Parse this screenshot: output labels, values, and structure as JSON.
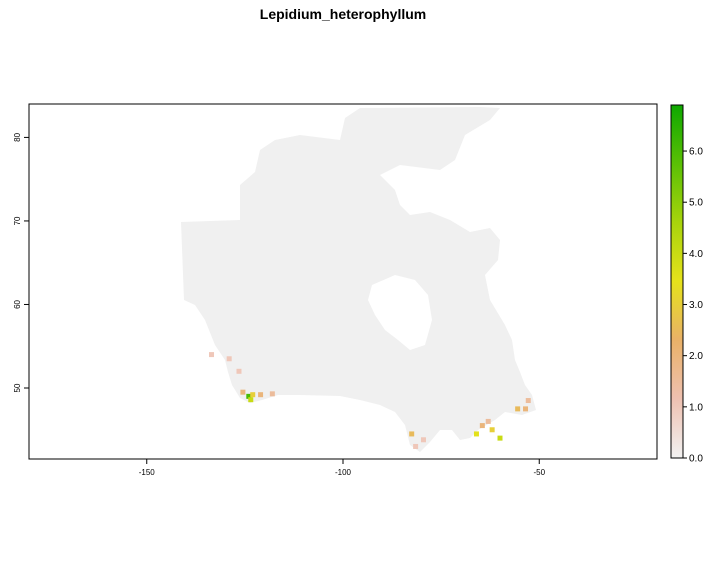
{
  "title": "Lepidium_heterophyllum",
  "map": {
    "x_axis": {
      "ticks": [
        -150,
        -100,
        -50
      ],
      "tick_labels": [
        "-150",
        "-100",
        "-50"
      ],
      "range": [
        -180,
        -20
      ]
    },
    "y_axis": {
      "ticks": [
        50,
        60,
        70,
        80
      ],
      "tick_labels": [
        "50",
        "60",
        "70",
        "80"
      ],
      "range": [
        41.5,
        84
      ]
    },
    "background_color": "#f0f0f0"
  },
  "legend": {
    "ticks": [
      0.0,
      1.0,
      2.0,
      3.0,
      4.0,
      5.0,
      6.0
    ],
    "tick_labels": [
      "0.0",
      "1.0",
      "2.0",
      "3.0",
      "4.0",
      "5.0",
      "6.0"
    ],
    "range": [
      0,
      6.9
    ],
    "colors": [
      "#f2f2f2",
      "#eec1b1",
      "#e9b168",
      "#e6e21b",
      "#a8d40c",
      "#5ac005",
      "#0ea800"
    ]
  },
  "chart_data": {
    "type": "heatmap",
    "title": "Lepidium_heterophyllum",
    "xlabel": "",
    "ylabel": "",
    "xlim": [
      -180,
      -20
    ],
    "ylim": [
      41.5,
      84
    ],
    "value_range": [
      0,
      6.9
    ],
    "hotspots": [
      {
        "lon": -133.5,
        "lat": 54.0,
        "value": 1.0
      },
      {
        "lon": -129.0,
        "lat": 53.5,
        "value": 1.0
      },
      {
        "lon": -126.5,
        "lat": 52.0,
        "value": 1.0
      },
      {
        "lon": -125.5,
        "lat": 49.5,
        "value": 2.0
      },
      {
        "lon": -124.0,
        "lat": 49.0,
        "value": 6.0
      },
      {
        "lon": -123.5,
        "lat": 48.6,
        "value": 4.0
      },
      {
        "lon": -123.0,
        "lat": 49.2,
        "value": 3.0
      },
      {
        "lon": -121.0,
        "lat": 49.2,
        "value": 2.0
      },
      {
        "lon": -118.0,
        "lat": 49.3,
        "value": 1.5
      },
      {
        "lon": -82.5,
        "lat": 44.5,
        "value": 2.5
      },
      {
        "lon": -81.5,
        "lat": 43.0,
        "value": 1.0
      },
      {
        "lon": -79.5,
        "lat": 43.8,
        "value": 1.0
      },
      {
        "lon": -66.0,
        "lat": 44.5,
        "value": 3.5
      },
      {
        "lon": -64.5,
        "lat": 45.5,
        "value": 2.0
      },
      {
        "lon": -63.0,
        "lat": 46.0,
        "value": 1.5
      },
      {
        "lon": -62.0,
        "lat": 45.0,
        "value": 3.0
      },
      {
        "lon": -60.0,
        "lat": 44.0,
        "value": 4.0
      },
      {
        "lon": -55.5,
        "lat": 47.5,
        "value": 2.5
      },
      {
        "lon": -53.5,
        "lat": 47.5,
        "value": 2.0
      },
      {
        "lon": -52.8,
        "lat": 48.5,
        "value": 1.5
      }
    ]
  }
}
